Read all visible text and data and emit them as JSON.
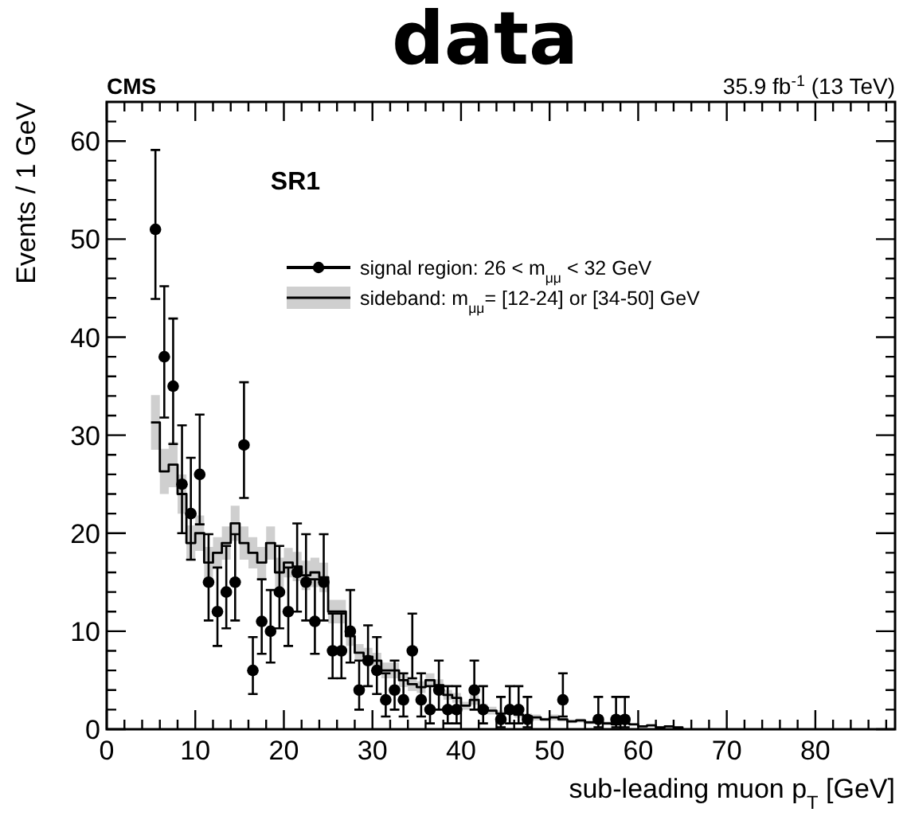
{
  "chart_data": {
    "type": "scatter",
    "title": "data",
    "xlabel": "sub-leading muon p$_{T}$ [GeV]",
    "ylabel": "Events / 1 GeV",
    "annotations": [
      "CMS",
      "35.9 fb$^{-1}$ (13 TeV)",
      "SR1"
    ],
    "xlim": [
      0,
      89
    ],
    "ylim": [
      0,
      64
    ],
    "xticks": [
      0,
      {
        "value": 2,
        "label": null
      },
      {
        "value": 4,
        "label": null
      },
      {
        "value": 6,
        "label": null
      },
      {
        "value": 8,
        "label": null
      },
      10,
      {
        "value": 12,
        "label": null
      },
      {
        "value": 14,
        "label": null
      },
      {
        "value": 16,
        "label": null
      },
      {
        "value": 18,
        "label": null
      },
      20,
      {
        "value": 22,
        "label": null
      },
      {
        "value": 24,
        "label": null
      },
      {
        "value": 26,
        "label": null
      },
      {
        "value": 28,
        "label": null
      },
      30,
      {
        "value": 32,
        "label": null
      },
      {
        "value": 34,
        "label": null
      },
      {
        "value": 36,
        "label": null
      },
      {
        "value": 38,
        "label": null
      },
      40,
      {
        "value": 42,
        "label": null
      },
      {
        "value": 44,
        "label": null
      },
      {
        "value": 46,
        "label": null
      },
      {
        "value": 48,
        "label": null
      },
      50,
      {
        "value": 52,
        "label": null
      },
      {
        "value": 54,
        "label": null
      },
      {
        "value": 56,
        "label": null
      },
      {
        "value": 58,
        "label": null
      },
      60,
      {
        "value": 62,
        "label": null
      },
      {
        "value": 64,
        "label": null
      },
      {
        "value": 66,
        "label": null
      },
      {
        "value": 68,
        "label": null
      },
      70,
      {
        "value": 72,
        "label": null
      },
      {
        "value": 74,
        "label": null
      },
      {
        "value": 76,
        "label": null
      },
      {
        "value": 78,
        "label": null
      },
      80,
      {
        "value": 82,
        "label": null
      },
      {
        "value": 84,
        "label": null
      },
      {
        "value": 86,
        "label": null
      },
      {
        "value": 88,
        "label": null
      }
    ],
    "yticks": [
      0,
      {
        "value": 2,
        "label": null
      },
      {
        "value": 4,
        "label": null
      },
      {
        "value": 6,
        "label": null
      },
      {
        "value": 8,
        "label": null
      },
      10,
      {
        "value": 12,
        "label": null
      },
      {
        "value": 14,
        "label": null
      },
      {
        "value": 16,
        "label": null
      },
      {
        "value": 18,
        "label": null
      },
      20,
      {
        "value": 22,
        "label": null
      },
      {
        "value": 24,
        "label": null
      },
      {
        "value": 26,
        "label": null
      },
      {
        "value": 28,
        "label": null
      },
      30,
      {
        "value": 32,
        "label": null
      },
      {
        "value": 34,
        "label": null
      },
      {
        "value": 36,
        "label": null
      },
      {
        "value": 38,
        "label": null
      },
      40,
      {
        "value": 42,
        "label": null
      },
      {
        "value": 44,
        "label": null
      },
      {
        "value": 46,
        "label": null
      },
      {
        "value": 48,
        "label": null
      },
      50,
      {
        "value": 52,
        "label": null
      },
      {
        "value": 54,
        "label": null
      },
      {
        "value": 56,
        "label": null
      },
      {
        "value": 58,
        "label": null
      },
      60,
      {
        "value": 62,
        "label": null
      }
    ],
    "legend": "top right",
    "grid": false,
    "series": [
      {
        "name": "signal region: 26 < m$_{μμ}$ < 32 GeV",
        "marker": "circle",
        "color": "#000000",
        "x": [
          5.5,
          6.5,
          7.5,
          8.5,
          9.5,
          10.5,
          11.5,
          12.5,
          13.5,
          14.5,
          15.5,
          16.5,
          17.5,
          18.5,
          19.5,
          20.5,
          21.5,
          22.5,
          23.5,
          24.5,
          25.5,
          26.5,
          27.5,
          28.5,
          29.5,
          30.5,
          31.5,
          32.5,
          33.5,
          34.5,
          35.5,
          36.5,
          37.5,
          38.5,
          39.5,
          41.5,
          42.5,
          44.5,
          45.5,
          46.5,
          47.5,
          51.5,
          55.5,
          57.5,
          58.5
        ],
        "values": [
          51,
          38,
          35,
          25,
          22,
          26,
          15,
          12,
          14,
          15,
          29,
          6,
          11,
          10,
          14,
          12,
          16,
          15,
          11,
          15,
          8,
          8,
          10,
          4,
          7,
          6,
          3,
          4,
          3,
          8,
          3,
          2,
          4,
          2,
          2,
          4,
          2,
          1,
          2,
          2,
          1,
          3,
          1,
          1,
          1
        ],
        "errors": [
          [
            43.9,
            59.1
          ],
          [
            31.8,
            45.2
          ],
          [
            29.1,
            41.9
          ],
          [
            20,
            31
          ],
          [
            17.3,
            27.7
          ],
          [
            20.9,
            32.1
          ],
          [
            11.1,
            19.9
          ],
          [
            8.5,
            16.5
          ],
          [
            10.3,
            18.7
          ],
          [
            11.1,
            19.9
          ],
          [
            23.6,
            35.4
          ],
          [
            3.6,
            9.4
          ],
          [
            7.7,
            15.3
          ],
          [
            6.8,
            14.2
          ],
          [
            10.3,
            18.7
          ],
          [
            8.5,
            16.5
          ],
          [
            12,
            21
          ],
          [
            11.1,
            19.9
          ],
          [
            7.7,
            15.3
          ],
          [
            11.1,
            19.9
          ],
          [
            5.2,
            11.8
          ],
          [
            5.2,
            11.8
          ],
          [
            6.8,
            14.2
          ],
          [
            2,
            7
          ],
          [
            4.4,
            10.6
          ],
          [
            3.6,
            9.4
          ],
          [
            1.3,
            5.7
          ],
          [
            2,
            7
          ],
          [
            1.3,
            5.7
          ],
          [
            5.2,
            11.8
          ],
          [
            1.3,
            5.7
          ],
          [
            0.6,
            4.4
          ],
          [
            2,
            7
          ],
          [
            0.6,
            4.4
          ],
          [
            0.6,
            4.4
          ],
          [
            2,
            7
          ],
          [
            0.6,
            4.4
          ],
          [
            0.2,
            3.3
          ],
          [
            0.6,
            4.4
          ],
          [
            0.6,
            4.4
          ],
          [
            0.2,
            3.3
          ],
          [
            1.3,
            5.7
          ],
          [
            0.2,
            3.3
          ],
          [
            0.2,
            3.3
          ],
          [
            0.2,
            3.3
          ]
        ]
      },
      {
        "name": "sideband: m$_{μμ}$= [12-24] or [34-50] GeV",
        "type": "step",
        "color": "#000000",
        "x": [
          5,
          6,
          7,
          8,
          9,
          10,
          11,
          12,
          13,
          14,
          15,
          16,
          17,
          18,
          19,
          20,
          21,
          22,
          23,
          24,
          25,
          26,
          27,
          28,
          29,
          30,
          31,
          32,
          33,
          34,
          35,
          36,
          37,
          38,
          39,
          40,
          41,
          42,
          43,
          44,
          45,
          46,
          47,
          48,
          49,
          50,
          51,
          52,
          53,
          54,
          55,
          56,
          57,
          58,
          59,
          60,
          61,
          62,
          63,
          64,
          65
        ],
        "values": [
          31.3,
          26.3,
          27,
          24,
          19,
          20,
          17,
          18,
          19,
          21,
          19,
          18,
          17,
          19,
          16,
          17,
          16.6,
          15.7,
          16,
          15.5,
          12,
          12,
          9.5,
          7.8,
          7.4,
          7,
          6,
          6,
          5,
          4.6,
          4.3,
          5,
          4.5,
          3.5,
          3.2,
          2.4,
          3,
          2.2,
          1.9,
          1.6,
          1.8,
          1.5,
          1.3,
          1.2,
          1,
          1.2,
          1,
          0.8,
          0.9,
          0.7,
          0.8,
          0.6,
          0.5,
          0.6,
          0.5,
          0.3,
          0.4,
          0.2,
          0.3,
          0.2,
          0
        ],
        "lower": [
          28.5,
          24,
          24.7,
          22,
          17.2,
          18.2,
          15.4,
          16.4,
          17.3,
          19.2,
          17.3,
          16.4,
          15.4,
          17.3,
          14.5,
          15.5,
          15.1,
          14.2,
          14.5,
          14,
          10.8,
          10.8,
          8.5,
          6.9,
          6.5,
          6.2,
          5.2,
          5.2,
          4.3,
          3.9,
          3.7,
          4.3,
          3.9,
          3,
          2.7,
          2,
          2.5,
          1.8,
          1.5,
          1.3,
          1.5,
          1.2,
          1,
          0.9,
          0.8,
          0.9,
          0.8,
          0.6,
          0.7,
          0.5,
          0.6,
          0.4,
          0.4,
          0.4,
          0.4,
          0.2,
          0.3,
          0.1,
          0.2,
          0.1,
          0
        ],
        "upper": [
          34.1,
          28.6,
          29.3,
          26,
          20.8,
          21.8,
          18.6,
          19.6,
          20.7,
          22.8,
          20.7,
          19.6,
          18.6,
          20.7,
          17.5,
          18.5,
          18.1,
          17.2,
          17.5,
          17,
          13.2,
          13.2,
          10.5,
          8.7,
          8.3,
          7.8,
          6.8,
          6.8,
          5.7,
          5.3,
          4.9,
          5.7,
          5.1,
          4,
          3.7,
          2.8,
          3.5,
          2.6,
          2.3,
          1.9,
          2.1,
          1.8,
          1.6,
          1.5,
          1.2,
          1.5,
          1.2,
          1,
          1.1,
          0.9,
          1,
          0.8,
          0.6,
          0.8,
          0.6,
          0.4,
          0.5,
          0.3,
          0.4,
          0.3,
          0
        ]
      }
    ]
  }
}
